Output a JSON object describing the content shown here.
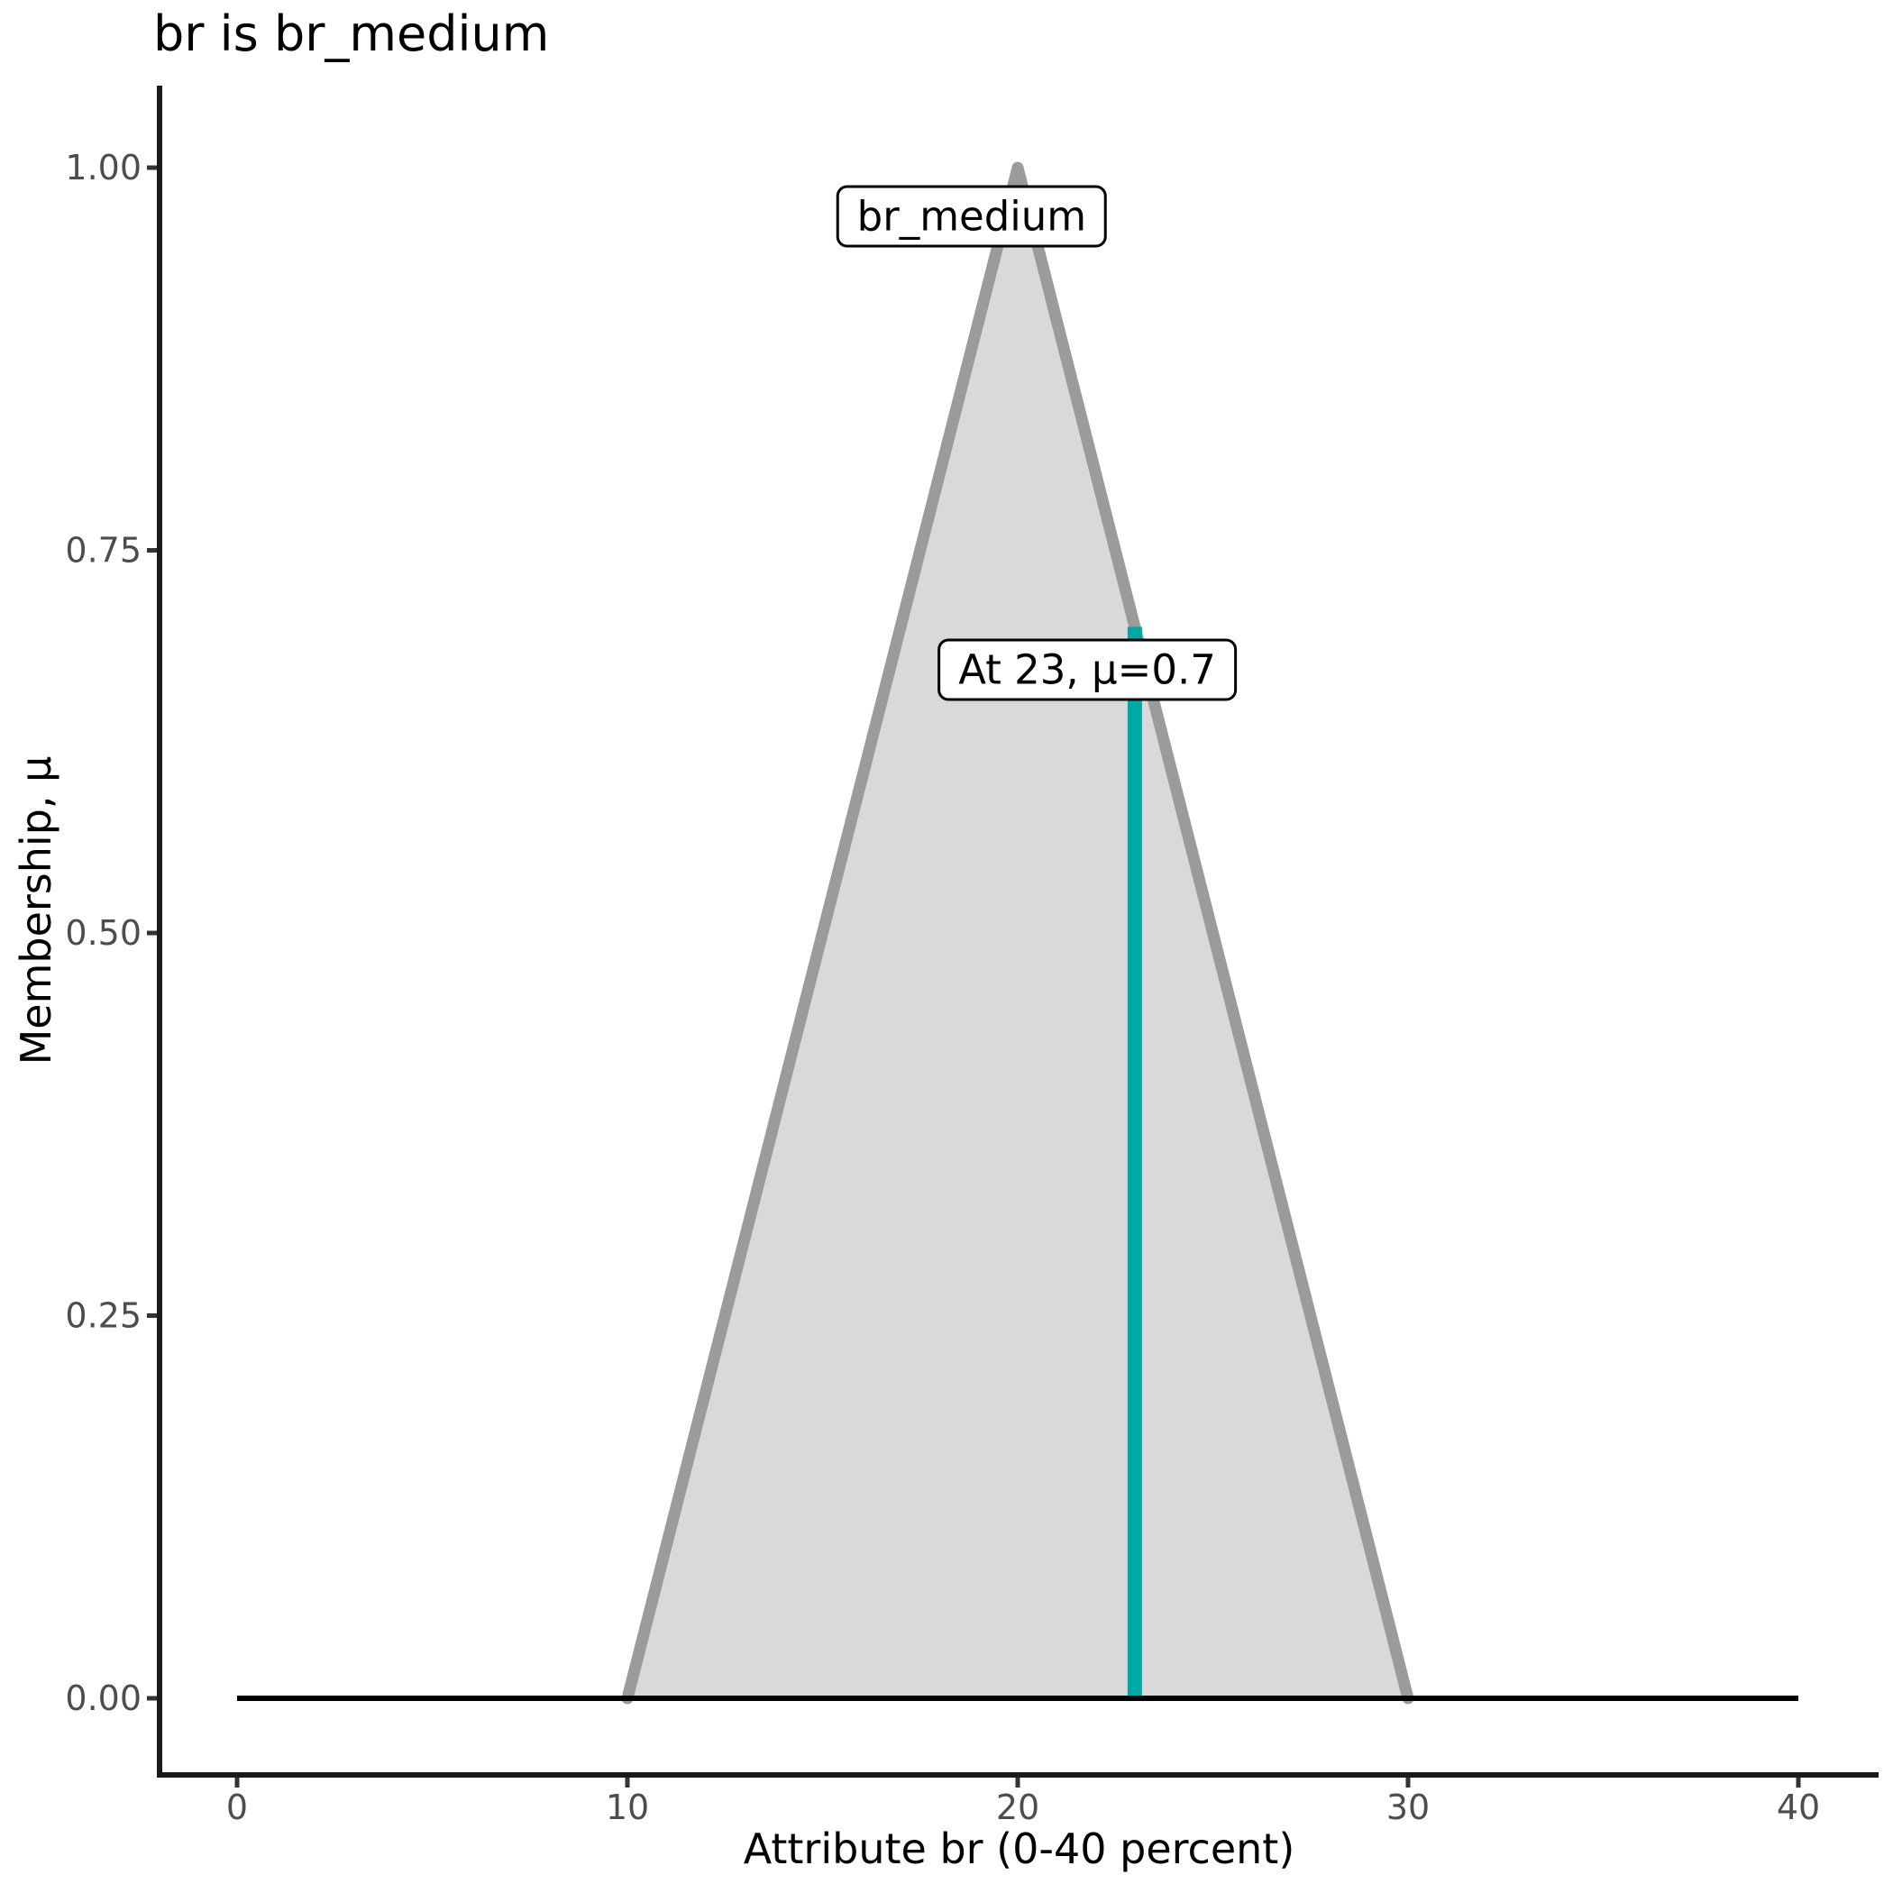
{
  "chart_data": {
    "type": "area",
    "title": "br is br_medium",
    "xlabel": "Attribute br (0-40 percent)",
    "ylabel": "Membership, μ",
    "xlim": [
      0,
      40
    ],
    "ylim": [
      0,
      1
    ],
    "grid": false,
    "legend": false,
    "x_ticks": {
      "values": [
        0,
        10,
        20,
        30,
        40
      ],
      "labels": [
        "0",
        "10",
        "20",
        "30",
        "40"
      ]
    },
    "y_ticks": {
      "values": [
        0,
        0.25,
        0.5,
        0.75,
        1
      ],
      "labels": [
        "0.00",
        "0.25",
        "0.50",
        "0.75",
        "1.00"
      ]
    },
    "series": [
      {
        "name": "br_medium",
        "x": [
          0,
          10,
          20,
          30,
          40
        ],
        "y": [
          0,
          0,
          1,
          0,
          0
        ],
        "fill_color": "#d9d9d9",
        "outline_color": "#9b9b9b",
        "baseline_color": "#000000"
      }
    ],
    "marker_line": {
      "x": 23,
      "mu": 0.7,
      "color": "#00a9a6"
    },
    "annotations": [
      {
        "text": "br_medium",
        "anchor_x": 18.82,
        "anchor_mu": 0.968
      },
      {
        "text": "At 23, μ=0.7",
        "anchor_x": 21.78,
        "anchor_mu": 0.672
      }
    ],
    "colors": {
      "axis_line": "#1a1a1a",
      "tick_mark": "#333333",
      "tick_label": "#4d4d4d",
      "title_text": "#000000"
    }
  }
}
